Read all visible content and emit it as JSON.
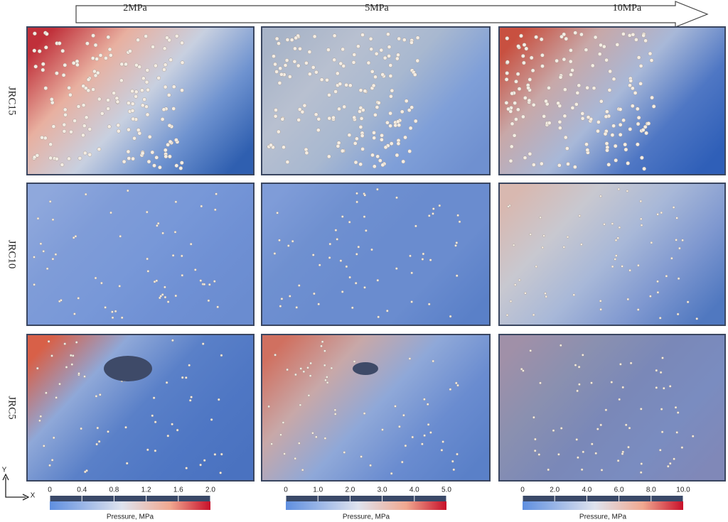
{
  "header": {
    "columns": [
      "2MPa",
      "5MPa",
      "10MPa"
    ]
  },
  "rows": [
    "JRC15",
    "JRC10",
    "JRC5"
  ],
  "axes": {
    "y": "Y",
    "x": "X"
  },
  "colorbars": [
    {
      "ticks": [
        "0",
        "0.4",
        "0.8",
        "1.2",
        "1.6",
        "2.0"
      ],
      "label": "Pressure, MPa"
    },
    {
      "ticks": [
        "0",
        "1.0",
        "2.0",
        "3.0",
        "4.0",
        "5.0"
      ],
      "label": "Pressure, MPa"
    },
    {
      "ticks": [
        "0",
        "2.0",
        "4.0",
        "6.0",
        "8.0",
        "10.0"
      ],
      "label": "Pressure, MPa"
    }
  ]
}
